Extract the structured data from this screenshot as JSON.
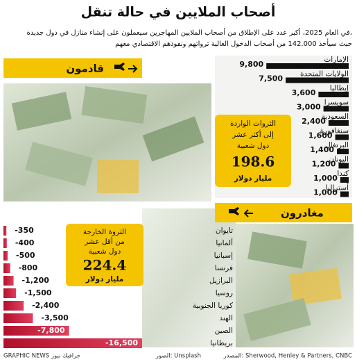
{
  "header": {
    "title": "أصحاب الملايين في حالة تنقل",
    "subtitle": [
      "في العام 2025، أكبر عدد على الإطلاق من أصحاب الملايين المهاجرين سيعملون على إنشاء منازل في دول جديدة،",
      "حيث سيأخذ 142.000 من أصحاب الدخول العالية ثرواتهم ونفوذهم الاقتصادي معهم"
    ]
  },
  "chart_data": [
    {
      "type": "bar",
      "title": "قادمون",
      "categories": [
        "الإمارات",
        "الولايات المتحدة",
        "إيطاليا",
        "سويسرا",
        "السعودية",
        "سنغافورة",
        "البرتغال",
        "اليونان",
        "كندا",
        "أستراليا"
      ],
      "values": [
        9800,
        7500,
        3600,
        3000,
        2400,
        1600,
        1400,
        1200,
        1000,
        1000
      ],
      "value_labels": [
        "9,800",
        "7,500",
        "3,600",
        "3,000",
        "2,400",
        "1,600",
        "1,400",
        "1,200",
        "1,000",
        "1,000"
      ],
      "color": "#111111"
    },
    {
      "type": "bar",
      "title": "مغادرون",
      "categories": [
        "تايوان",
        "ألمانيا",
        "إسبانيا",
        "فرنسا",
        "البرازيل",
        "روسيا",
        "كوريا الجنوبية",
        "الهند",
        "الصين",
        "بريطانيا"
      ],
      "values": [
        -350,
        -400,
        -500,
        -800,
        -1200,
        -1500,
        -2400,
        -3500,
        -7800,
        -16500
      ],
      "value_labels": [
        "-350",
        "-400",
        "-500",
        "-800",
        "-1,200",
        "-1,500",
        "-2,400",
        "-3,500",
        "-7,800",
        "-16,500"
      ],
      "color": "#c8102e"
    }
  ],
  "callouts": [
    {
      "lines": [
        "الثروات الواردة",
        "إلى أكثر عشر",
        "دول شعبية"
      ],
      "amount": 198.6,
      "unit": "مليار دولار"
    },
    {
      "lines": [
        "الثروة الخارجة",
        "من أقل عشر",
        "دول شعبية"
      ],
      "amount": 224.4,
      "unit": "مليار دولار"
    }
  ],
  "footer": {
    "source": "المصدر: Sherwood, Henley & Partners, CNBC",
    "photos": "الصور: Unsplash",
    "credit": "GRAPHIC NEWS جرافيك نيوز"
  }
}
